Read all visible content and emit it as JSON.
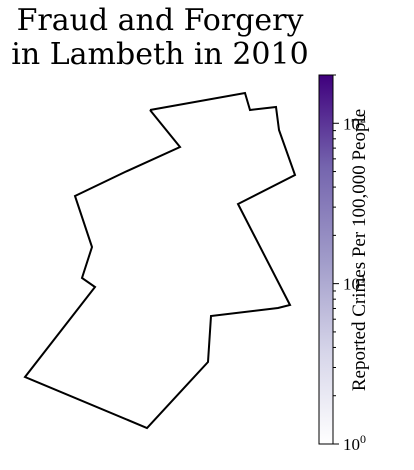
{
  "title_line1": "Fraud and Forgery",
  "title_line2": "in Lambeth in 2010",
  "colorbar": {
    "label": "Reported Crimes Per 100,000 People",
    "scale": "log",
    "min": 1,
    "max": 200,
    "color_low": "#ffffff",
    "color_high": "#3f007d",
    "ticks": [
      {
        "value": 1,
        "base": "10",
        "exp": "0"
      },
      {
        "value": 10,
        "base": "10",
        "exp": "1"
      },
      {
        "value": 100,
        "base": "10",
        "exp": "2"
      }
    ]
  },
  "map": {
    "region": "Lambeth",
    "year": 2010,
    "fill": "none",
    "stroke": "#000000"
  }
}
